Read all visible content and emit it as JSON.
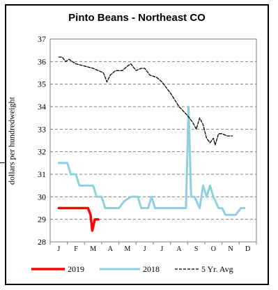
{
  "chart_data": {
    "type": "line",
    "title": "Pinto Beans - Northeast CO",
    "ylabel": "dollars per hundredweight",
    "xlabel": "",
    "ylim": [
      28,
      37
    ],
    "yticks": [
      "28",
      "29",
      "30",
      "31",
      "32",
      "33",
      "34",
      "35",
      "36",
      "37"
    ],
    "categories": [
      "J",
      "F",
      "M",
      "A",
      "M",
      "J",
      "J",
      "A",
      "S",
      "O",
      "N",
      "D"
    ],
    "grid": "horizontal dashed",
    "legend_position": "bottom",
    "colors": {
      "2019": "#ff0000",
      "2018": "#8ecfe0",
      "avg": "#000000"
    },
    "series": [
      {
        "name": "2019",
        "style": "solid-thick",
        "points": [
          [
            0.0,
            29.5
          ],
          [
            0.5,
            29.5
          ],
          [
            1.0,
            29.5
          ],
          [
            1.5,
            29.5
          ],
          [
            1.7,
            29.5
          ],
          [
            1.85,
            29.2
          ],
          [
            1.95,
            28.5
          ],
          [
            2.1,
            29.0
          ],
          [
            2.3,
            29.0
          ]
        ]
      },
      {
        "name": "2018",
        "style": "solid",
        "points": [
          [
            0.0,
            31.5
          ],
          [
            0.5,
            31.5
          ],
          [
            0.7,
            31.0
          ],
          [
            1.0,
            31.0
          ],
          [
            1.2,
            30.5
          ],
          [
            1.8,
            30.5
          ],
          [
            2.0,
            30.5
          ],
          [
            2.2,
            30.0
          ],
          [
            2.5,
            30.0
          ],
          [
            2.7,
            29.5
          ],
          [
            3.0,
            29.5
          ],
          [
            3.5,
            29.5
          ],
          [
            3.8,
            29.8
          ],
          [
            4.2,
            30.0
          ],
          [
            4.6,
            30.0
          ],
          [
            4.8,
            29.5
          ],
          [
            5.2,
            29.5
          ],
          [
            5.4,
            30.0
          ],
          [
            5.6,
            29.5
          ],
          [
            6.0,
            29.5
          ],
          [
            7.0,
            29.5
          ],
          [
            7.4,
            29.5
          ],
          [
            7.55,
            34.0
          ],
          [
            7.7,
            30.0
          ],
          [
            7.9,
            30.0
          ],
          [
            8.2,
            29.5
          ],
          [
            8.4,
            30.5
          ],
          [
            8.6,
            30.0
          ],
          [
            8.8,
            30.5
          ],
          [
            9.0,
            30.0
          ],
          [
            9.3,
            29.5
          ],
          [
            9.5,
            29.5
          ],
          [
            9.7,
            29.2
          ],
          [
            10.3,
            29.2
          ],
          [
            10.6,
            29.5
          ],
          [
            10.8,
            29.5
          ]
        ]
      },
      {
        "name": "5 Yr. Avg",
        "style": "dashed",
        "points": [
          [
            0.0,
            36.2
          ],
          [
            0.2,
            36.2
          ],
          [
            0.4,
            36.0
          ],
          [
            0.6,
            36.1
          ],
          [
            1.0,
            35.9
          ],
          [
            1.5,
            35.8
          ],
          [
            2.0,
            35.7
          ],
          [
            2.3,
            35.6
          ],
          [
            2.6,
            35.5
          ],
          [
            2.8,
            35.1
          ],
          [
            3.0,
            35.4
          ],
          [
            3.3,
            35.6
          ],
          [
            3.7,
            35.6
          ],
          [
            4.0,
            35.8
          ],
          [
            4.2,
            35.9
          ],
          [
            4.5,
            35.6
          ],
          [
            4.8,
            35.7
          ],
          [
            5.0,
            35.7
          ],
          [
            5.3,
            35.4
          ],
          [
            5.7,
            35.3
          ],
          [
            6.0,
            35.1
          ],
          [
            6.5,
            34.6
          ],
          [
            7.0,
            34.0
          ],
          [
            7.5,
            33.6
          ],
          [
            7.8,
            33.3
          ],
          [
            8.0,
            33.0
          ],
          [
            8.2,
            33.5
          ],
          [
            8.4,
            33.2
          ],
          [
            8.6,
            32.6
          ],
          [
            8.8,
            32.4
          ],
          [
            9.0,
            32.6
          ],
          [
            9.1,
            32.3
          ],
          [
            9.3,
            32.8
          ],
          [
            9.5,
            32.8
          ],
          [
            9.8,
            32.7
          ],
          [
            10.1,
            32.7
          ]
        ]
      }
    ]
  }
}
